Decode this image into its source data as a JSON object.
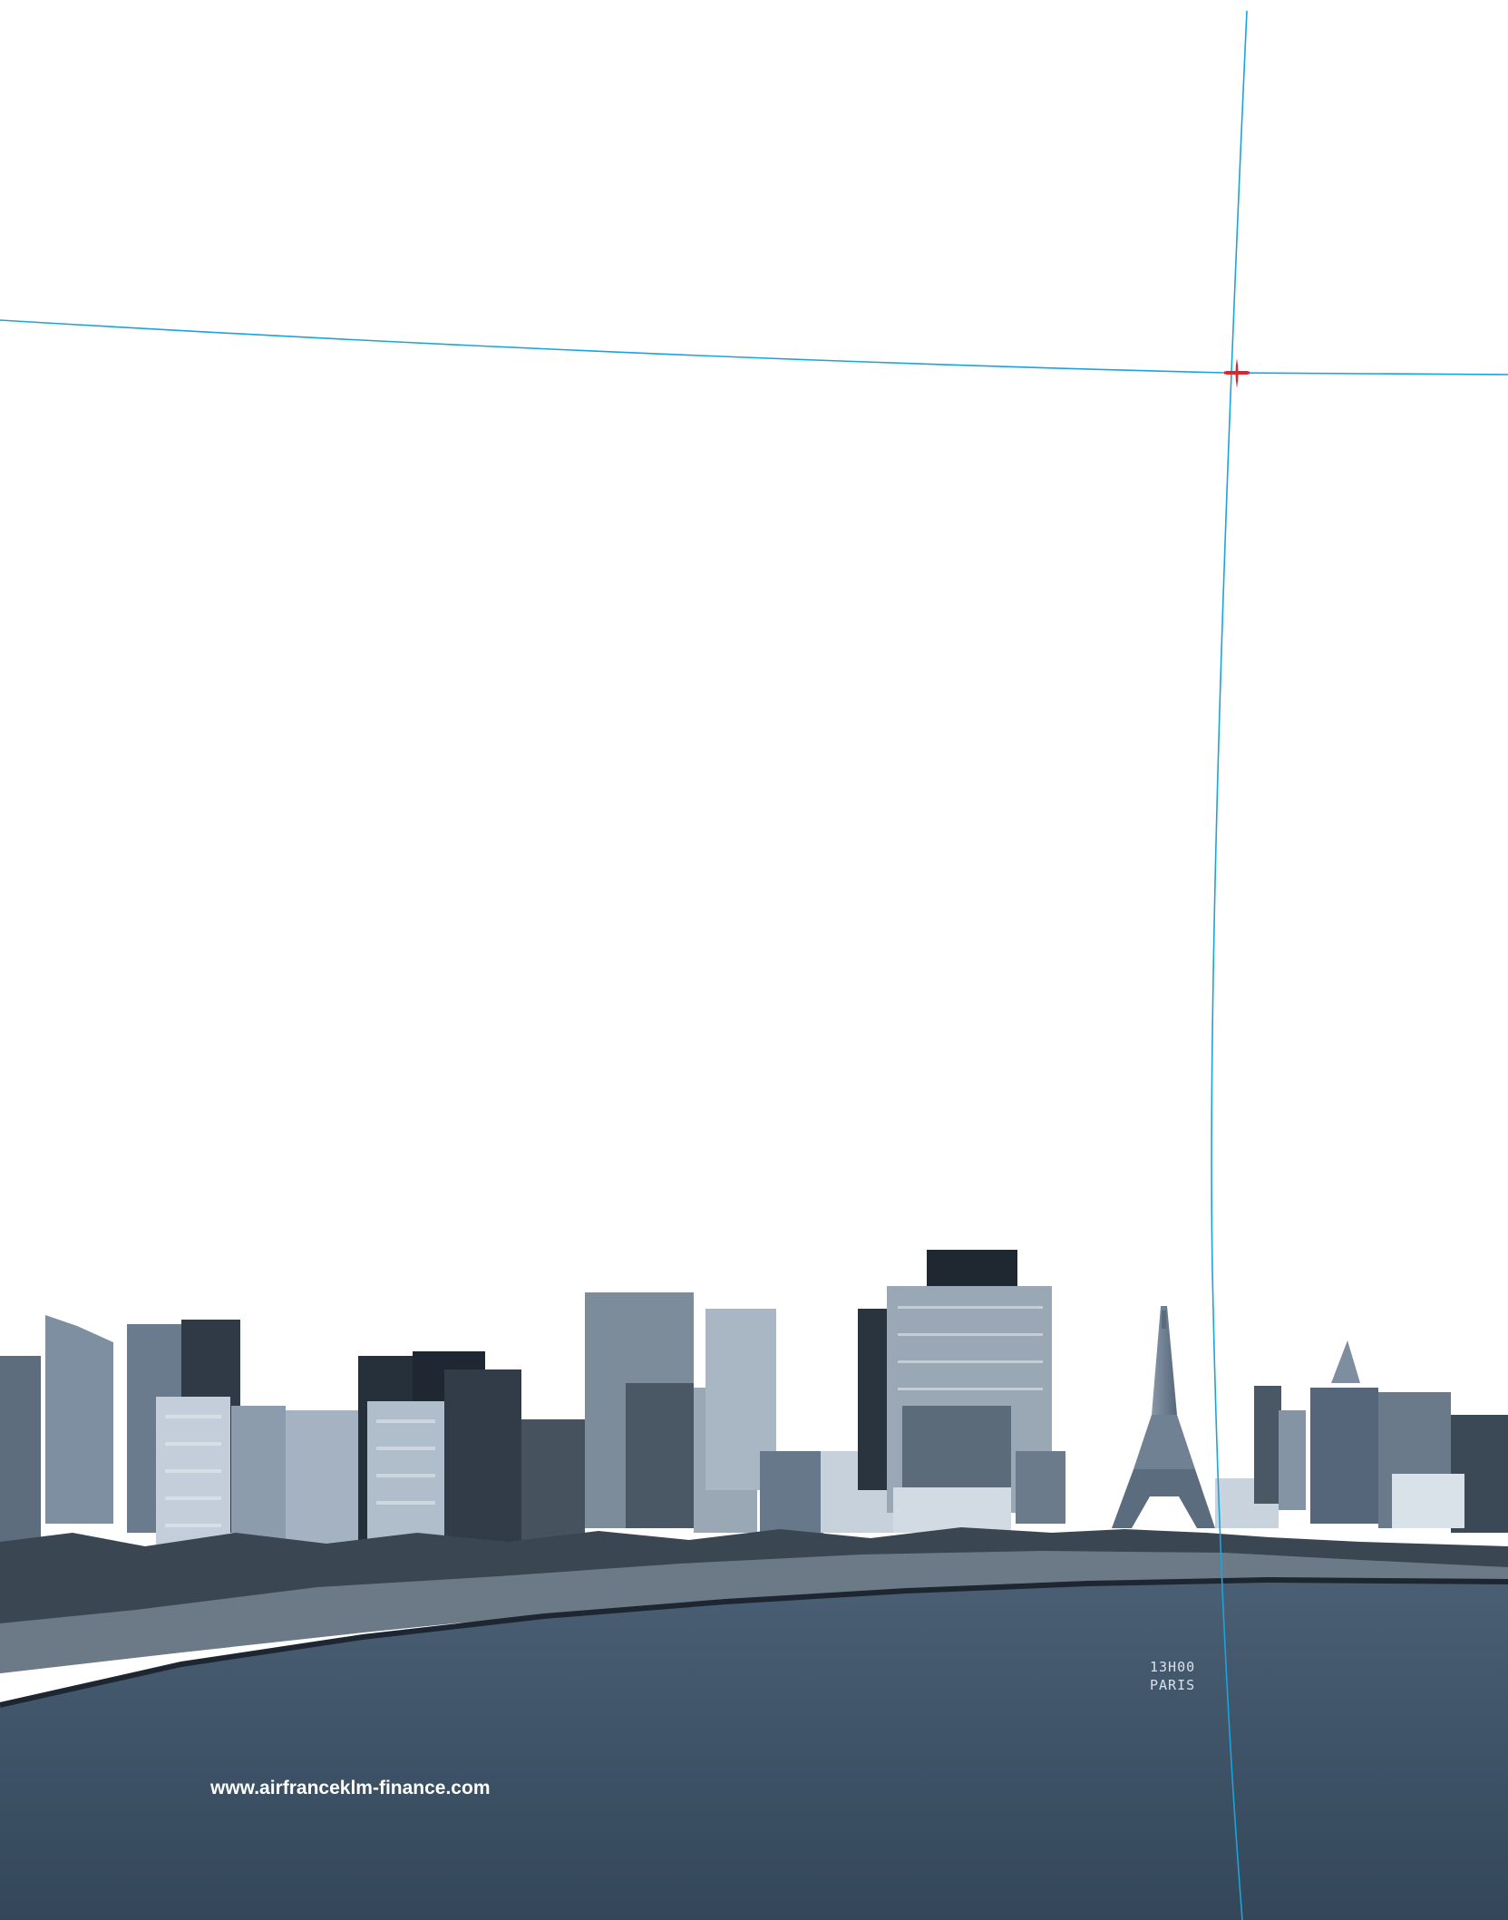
{
  "overlay": {
    "time": "13H00",
    "city": "PARIS"
  },
  "footer": {
    "website": "www.airfranceklm-finance.com"
  },
  "colors": {
    "guide_line": "#1aa3dc",
    "cross_marker": "#e0242c",
    "water": "#3e5367",
    "skyline_dark": "#2b3540",
    "skyline_mid": "#6f8193",
    "skyline_light": "#b9c6d2"
  },
  "icons": {
    "marker": "red-cross-marker-icon",
    "landmark": "eiffel-tower-icon"
  }
}
